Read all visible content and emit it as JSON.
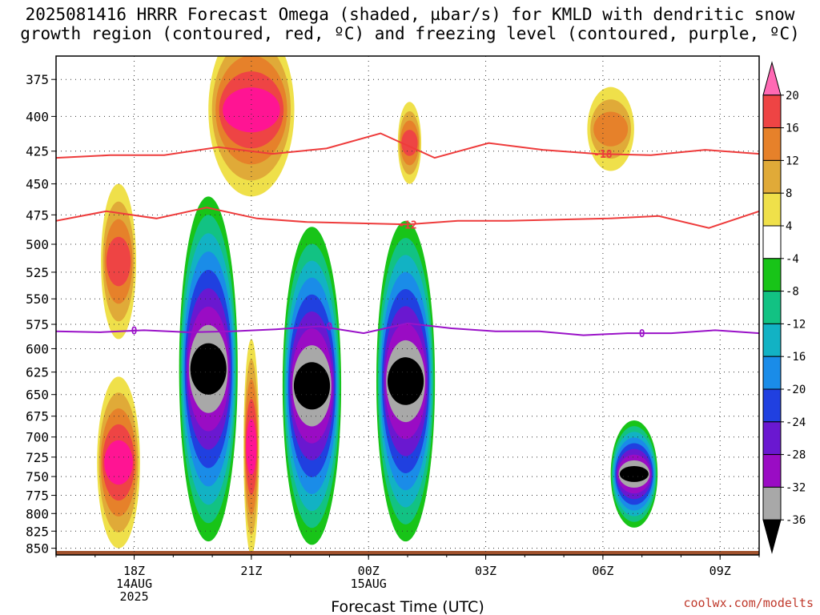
{
  "title": {
    "line1": "2025081416 HRRR Forecast Omega (shaded, µbar/s) for KMLD with dendritic snow",
    "line2": "growth region (contoured, red, ºC) and freezing level (contoured, purple, ºC)"
  },
  "watermark": "coolwx.com/modelts",
  "chart_data": {
    "type": "heatmap",
    "xlabel": "Forecast Time (UTC)",
    "x_ticks": [
      {
        "hour": 2,
        "lines": [
          "18Z",
          "14AUG",
          "2025"
        ]
      },
      {
        "hour": 5,
        "lines": [
          "21Z"
        ]
      },
      {
        "hour": 8,
        "lines": [
          "00Z",
          "15AUG"
        ]
      },
      {
        "hour": 11,
        "lines": [
          "03Z"
        ]
      },
      {
        "hour": 14,
        "lines": [
          "06Z"
        ]
      },
      {
        "hour": 17,
        "lines": [
          "09Z"
        ]
      }
    ],
    "x_range_hours": [
      0,
      18
    ],
    "y_ticks": [
      375,
      400,
      425,
      450,
      475,
      500,
      525,
      550,
      575,
      600,
      625,
      650,
      675,
      700,
      725,
      750,
      775,
      800,
      825,
      850
    ],
    "y_range_mb": [
      360,
      860
    ],
    "y_scale": "pressure",
    "grid": true,
    "colorbar": {
      "labels": [
        "20",
        "16",
        "12",
        "8",
        "4",
        "-4",
        "-8",
        "-12",
        "-16",
        "-20",
        "-24",
        "-28",
        "-32",
        "-36"
      ],
      "colors": [
        "#ff69b4",
        "#ee4444",
        "#e6812a",
        "#e0aa38",
        "#efe04a",
        "#ffffff",
        "#18c418",
        "#12c283",
        "#12b2c4",
        "#1a8ce8",
        "#2040e0",
        "#6a18d0",
        "#9a0cc4",
        "#a8a8a8",
        "#000000"
      ]
    },
    "contours": {
      "dgz_red": [
        {
          "label": "-18",
          "pressure_mb": [
            430,
            428,
            428,
            422,
            427,
            423,
            412,
            430,
            419,
            424,
            427,
            428,
            424,
            427
          ],
          "label_at_hour": 14
        },
        {
          "label": "-12",
          "pressure_mb": [
            480,
            472,
            478,
            469,
            478,
            481,
            482,
            483,
            480,
            480,
            479,
            478,
            476,
            486,
            472
          ],
          "label_at_hour": 9
        }
      ],
      "freezing_purple": [
        {
          "label": "0",
          "pressure_mb": [
            582,
            583,
            581,
            583,
            582,
            580,
            577,
            584,
            574,
            579,
            582,
            582,
            586,
            584,
            584,
            581,
            584
          ],
          "label_at_hours": [
            2,
            7,
            15
          ]
        }
      ]
    },
    "omega_features": [
      {
        "value": -40,
        "center_hour": 3.9,
        "center_mb": 650,
        "half_width_h": 0.75,
        "half_height_mb": 190,
        "sign": "negative"
      },
      {
        "value": -40,
        "center_hour": 6.55,
        "center_mb": 665,
        "half_width_h": 0.75,
        "half_height_mb": 180,
        "sign": "negative"
      },
      {
        "value": -40,
        "center_hour": 8.95,
        "center_mb": 660,
        "half_width_h": 0.75,
        "half_height_mb": 180,
        "sign": "negative"
      },
      {
        "value": -40,
        "center_hour": 14.8,
        "center_mb": 750,
        "half_width_h": 0.6,
        "half_height_mb": 70,
        "sign": "negative"
      },
      {
        "value": 20,
        "center_hour": 1.6,
        "center_mb": 740,
        "half_width_h": 0.55,
        "half_height_mb": 110,
        "sign": "positive"
      },
      {
        "value": 20,
        "center_hour": 5.0,
        "center_mb": 400,
        "half_width_h": 1.1,
        "half_height_mb": 60,
        "sign": "positive"
      },
      {
        "value": 20,
        "center_hour": 5.0,
        "center_mb": 730,
        "half_width_h": 0.2,
        "half_height_mb": 140,
        "sign": "positive"
      },
      {
        "value": 16,
        "center_hour": 1.6,
        "center_mb": 520,
        "half_width_h": 0.45,
        "half_height_mb": 70,
        "sign": "positive"
      },
      {
        "value": 16,
        "center_hour": 9.05,
        "center_mb": 420,
        "half_width_h": 0.3,
        "half_height_mb": 30,
        "sign": "positive"
      },
      {
        "value": 12,
        "center_hour": 14.2,
        "center_mb": 410,
        "half_width_h": 0.6,
        "half_height_mb": 30,
        "sign": "positive"
      }
    ]
  }
}
